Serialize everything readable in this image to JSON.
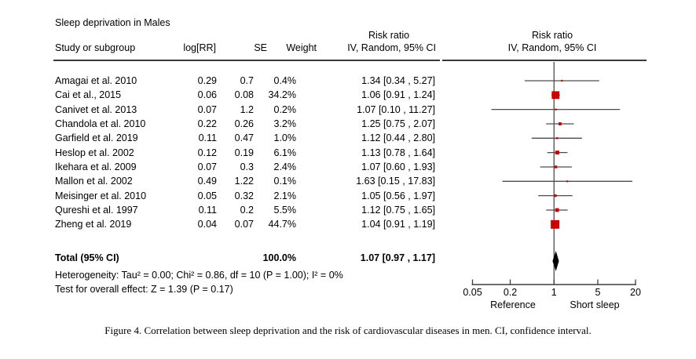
{
  "figure": {
    "title": "Sleep deprivation in Males",
    "caption": "Figure 4. Correlation between sleep deprivation and the risk of cardiovascular diseases in men. CI, confidence interval."
  },
  "table": {
    "columns": {
      "study": "Study or subgroup",
      "log_rr": "log[RR]",
      "se": "SE",
      "weight": "Weight"
    },
    "effect_header": {
      "line1": "Risk ratio",
      "line2": "IV, Random, 95% CI"
    },
    "plot_header": {
      "line1": "Risk ratio",
      "line2": "IV, Random, 95% CI"
    }
  },
  "chart_data": {
    "type": "forest",
    "x_scale": "log",
    "xlim": [
      0.05,
      20
    ],
    "x_ticks": [
      0.05,
      0.2,
      1,
      5,
      20
    ],
    "x_tick_labels": [
      "0.05",
      "0.2",
      "1",
      "5",
      "20"
    ],
    "x_axis_labels": {
      "left": "Reference",
      "right": "Short sleep"
    },
    "marker_color": "#c80000",
    "diamond_color": "#000000",
    "line_color": "#4d4d4d",
    "studies": [
      {
        "name": "Amagai et al. 2010",
        "log_rr": "0.29",
        "se": "0.7",
        "weight": "0.4%",
        "weight_pct": 0.4,
        "rr": 1.34,
        "ci_low": 0.34,
        "ci_high": 5.27,
        "ci_text": "1.34 [0.34 , 5.27]"
      },
      {
        "name": "Cai et al., 2015",
        "log_rr": "0.06",
        "se": "0.08",
        "weight": "34.2%",
        "weight_pct": 34.2,
        "rr": 1.06,
        "ci_low": 0.91,
        "ci_high": 1.24,
        "ci_text": "1.06 [0.91 , 1.24]"
      },
      {
        "name": "Canivet et al. 2013",
        "log_rr": "0.07",
        "se": "1.2",
        "weight": "0.2%",
        "weight_pct": 0.2,
        "rr": 1.07,
        "ci_low": 0.1,
        "ci_high": 11.27,
        "ci_text": "1.07 [0.10 , 11.27]"
      },
      {
        "name": "Chandola et al. 2010",
        "log_rr": "0.22",
        "se": "0.26",
        "weight": "3.2%",
        "weight_pct": 3.2,
        "rr": 1.25,
        "ci_low": 0.75,
        "ci_high": 2.07,
        "ci_text": "1.25 [0.75 , 2.07]"
      },
      {
        "name": "Garfield et al. 2019",
        "log_rr": "0.11",
        "se": "0.47",
        "weight": "1.0%",
        "weight_pct": 1.0,
        "rr": 1.12,
        "ci_low": 0.44,
        "ci_high": 2.8,
        "ci_text": "1.12 [0.44 , 2.80]"
      },
      {
        "name": "Heslop et al. 2002",
        "log_rr": "0.12",
        "se": "0.19",
        "weight": "6.1%",
        "weight_pct": 6.1,
        "rr": 1.13,
        "ci_low": 0.78,
        "ci_high": 1.64,
        "ci_text": "1.13 [0.78 , 1.64]"
      },
      {
        "name": "Ikehara et al. 2009",
        "log_rr": "0.07",
        "se": "0.3",
        "weight": "2.4%",
        "weight_pct": 2.4,
        "rr": 1.07,
        "ci_low": 0.6,
        "ci_high": 1.93,
        "ci_text": "1.07 [0.60 , 1.93]"
      },
      {
        "name": "Mallon et al. 2002",
        "log_rr": "0.49",
        "se": "1.22",
        "weight": "0.1%",
        "weight_pct": 0.1,
        "rr": 1.63,
        "ci_low": 0.15,
        "ci_high": 17.83,
        "ci_text": "1.63 [0.15 , 17.83]"
      },
      {
        "name": "Meisinger et al. 2010",
        "log_rr": "0.05",
        "se": "0.32",
        "weight": "2.1%",
        "weight_pct": 2.1,
        "rr": 1.05,
        "ci_low": 0.56,
        "ci_high": 1.97,
        "ci_text": "1.05 [0.56 , 1.97]"
      },
      {
        "name": "Qureshi et al. 1997",
        "log_rr": "0.11",
        "se": "0.2",
        "weight": "5.5%",
        "weight_pct": 5.5,
        "rr": 1.12,
        "ci_low": 0.75,
        "ci_high": 1.65,
        "ci_text": "1.12 [0.75 , 1.65]"
      },
      {
        "name": "Zheng et al. 2019",
        "log_rr": "0.04",
        "se": "0.07",
        "weight": "44.7%",
        "weight_pct": 44.7,
        "rr": 1.04,
        "ci_low": 0.91,
        "ci_high": 1.19,
        "ci_text": "1.04 [0.91 , 1.19]"
      }
    ],
    "total": {
      "label": "Total (95% CI)",
      "weight": "100.0%",
      "rr": 1.07,
      "ci_low": 0.97,
      "ci_high": 1.17,
      "ci_text": "1.07 [0.97 , 1.17]"
    },
    "heterogeneity": "Heterogeneity: Tau² = 0.00; Chi² = 0.86, df = 10 (P = 1.00); I² = 0%",
    "overall_effect": "Test for overall effect: Z = 1.39 (P = 0.17)"
  }
}
